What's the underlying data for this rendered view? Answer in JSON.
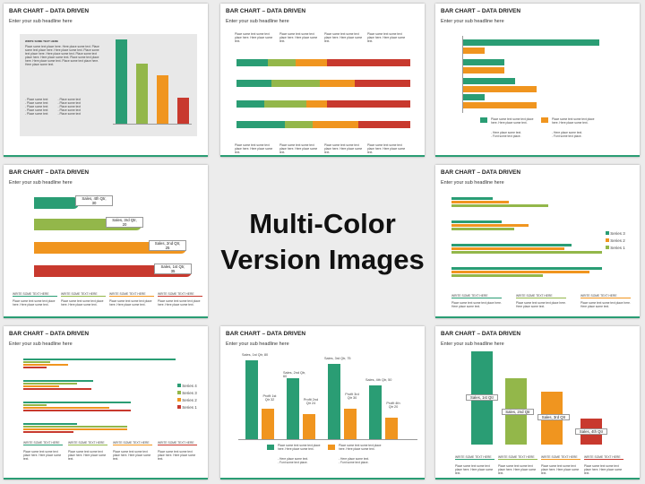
{
  "slide_title": "BAR CHART – DATA DRIVEN",
  "slide_subtitle": "Enter your sub headline here",
  "center": {
    "line1": "Multi-Color",
    "line2": "Version Images"
  },
  "placeholder_text": "Place some text some text place here. Here place some text.",
  "write_text": "WRITE SOME TEXT HERE",
  "colors": {
    "green": "#2a9d74",
    "lime": "#93b74a",
    "orange": "#f0951f",
    "red": "#c8392e"
  },
  "slide1": {
    "heading": "WRITE SOME TEXT HERE",
    "body": "Place some text place here. Here place some text. Place some text place here. Here place some text. Place some text place here. Here place some text. Place some text place here. Here place some text. Place some text place here. Here place some text. Place some text place here. Here place some text.",
    "values": [
      100,
      70,
      55,
      30
    ]
  },
  "slide2": {
    "rows": 4
  },
  "slide3": {
    "values": [
      100,
      20,
      45,
      50,
      20,
      55
    ]
  },
  "slide4": {
    "bars": [
      {
        "label": "Sales, 4th Qtr,",
        "value": "30"
      },
      {
        "label": "Sales, 3rd Qtr,",
        "value": "20"
      },
      {
        "label": "Sales, 2nd Qtr,",
        "value": "25"
      },
      {
        "label": "Sales, 1st Qtr,",
        "value": "35"
      }
    ]
  },
  "slide5": {
    "legend": [
      "Series 3",
      "Series 2",
      "Series 1"
    ]
  },
  "slide6": {
    "legend": [
      "Series 4",
      "Series 3",
      "Series 2",
      "Series 1"
    ]
  },
  "slide7": {
    "labels": [
      "Sales, 1st Qtr, 80",
      "Sales, 2nd Qtr, 60",
      "Sales, 3rd Qtr, 75",
      "Sales, 4th Qtr, 50"
    ],
    "profits": [
      "Profit 1st Qtr 32",
      "Profit 2nd Qtr 24",
      "Profit 3rd Qtr 30",
      "Profit 4th Qtr 20"
    ]
  },
  "slide8": {
    "labels": [
      "Sales, 1st Qtr",
      "Sales, 2nd Qtr",
      "Sales, 3rd Qtr",
      "Sales, 4th Qtr"
    ]
  }
}
